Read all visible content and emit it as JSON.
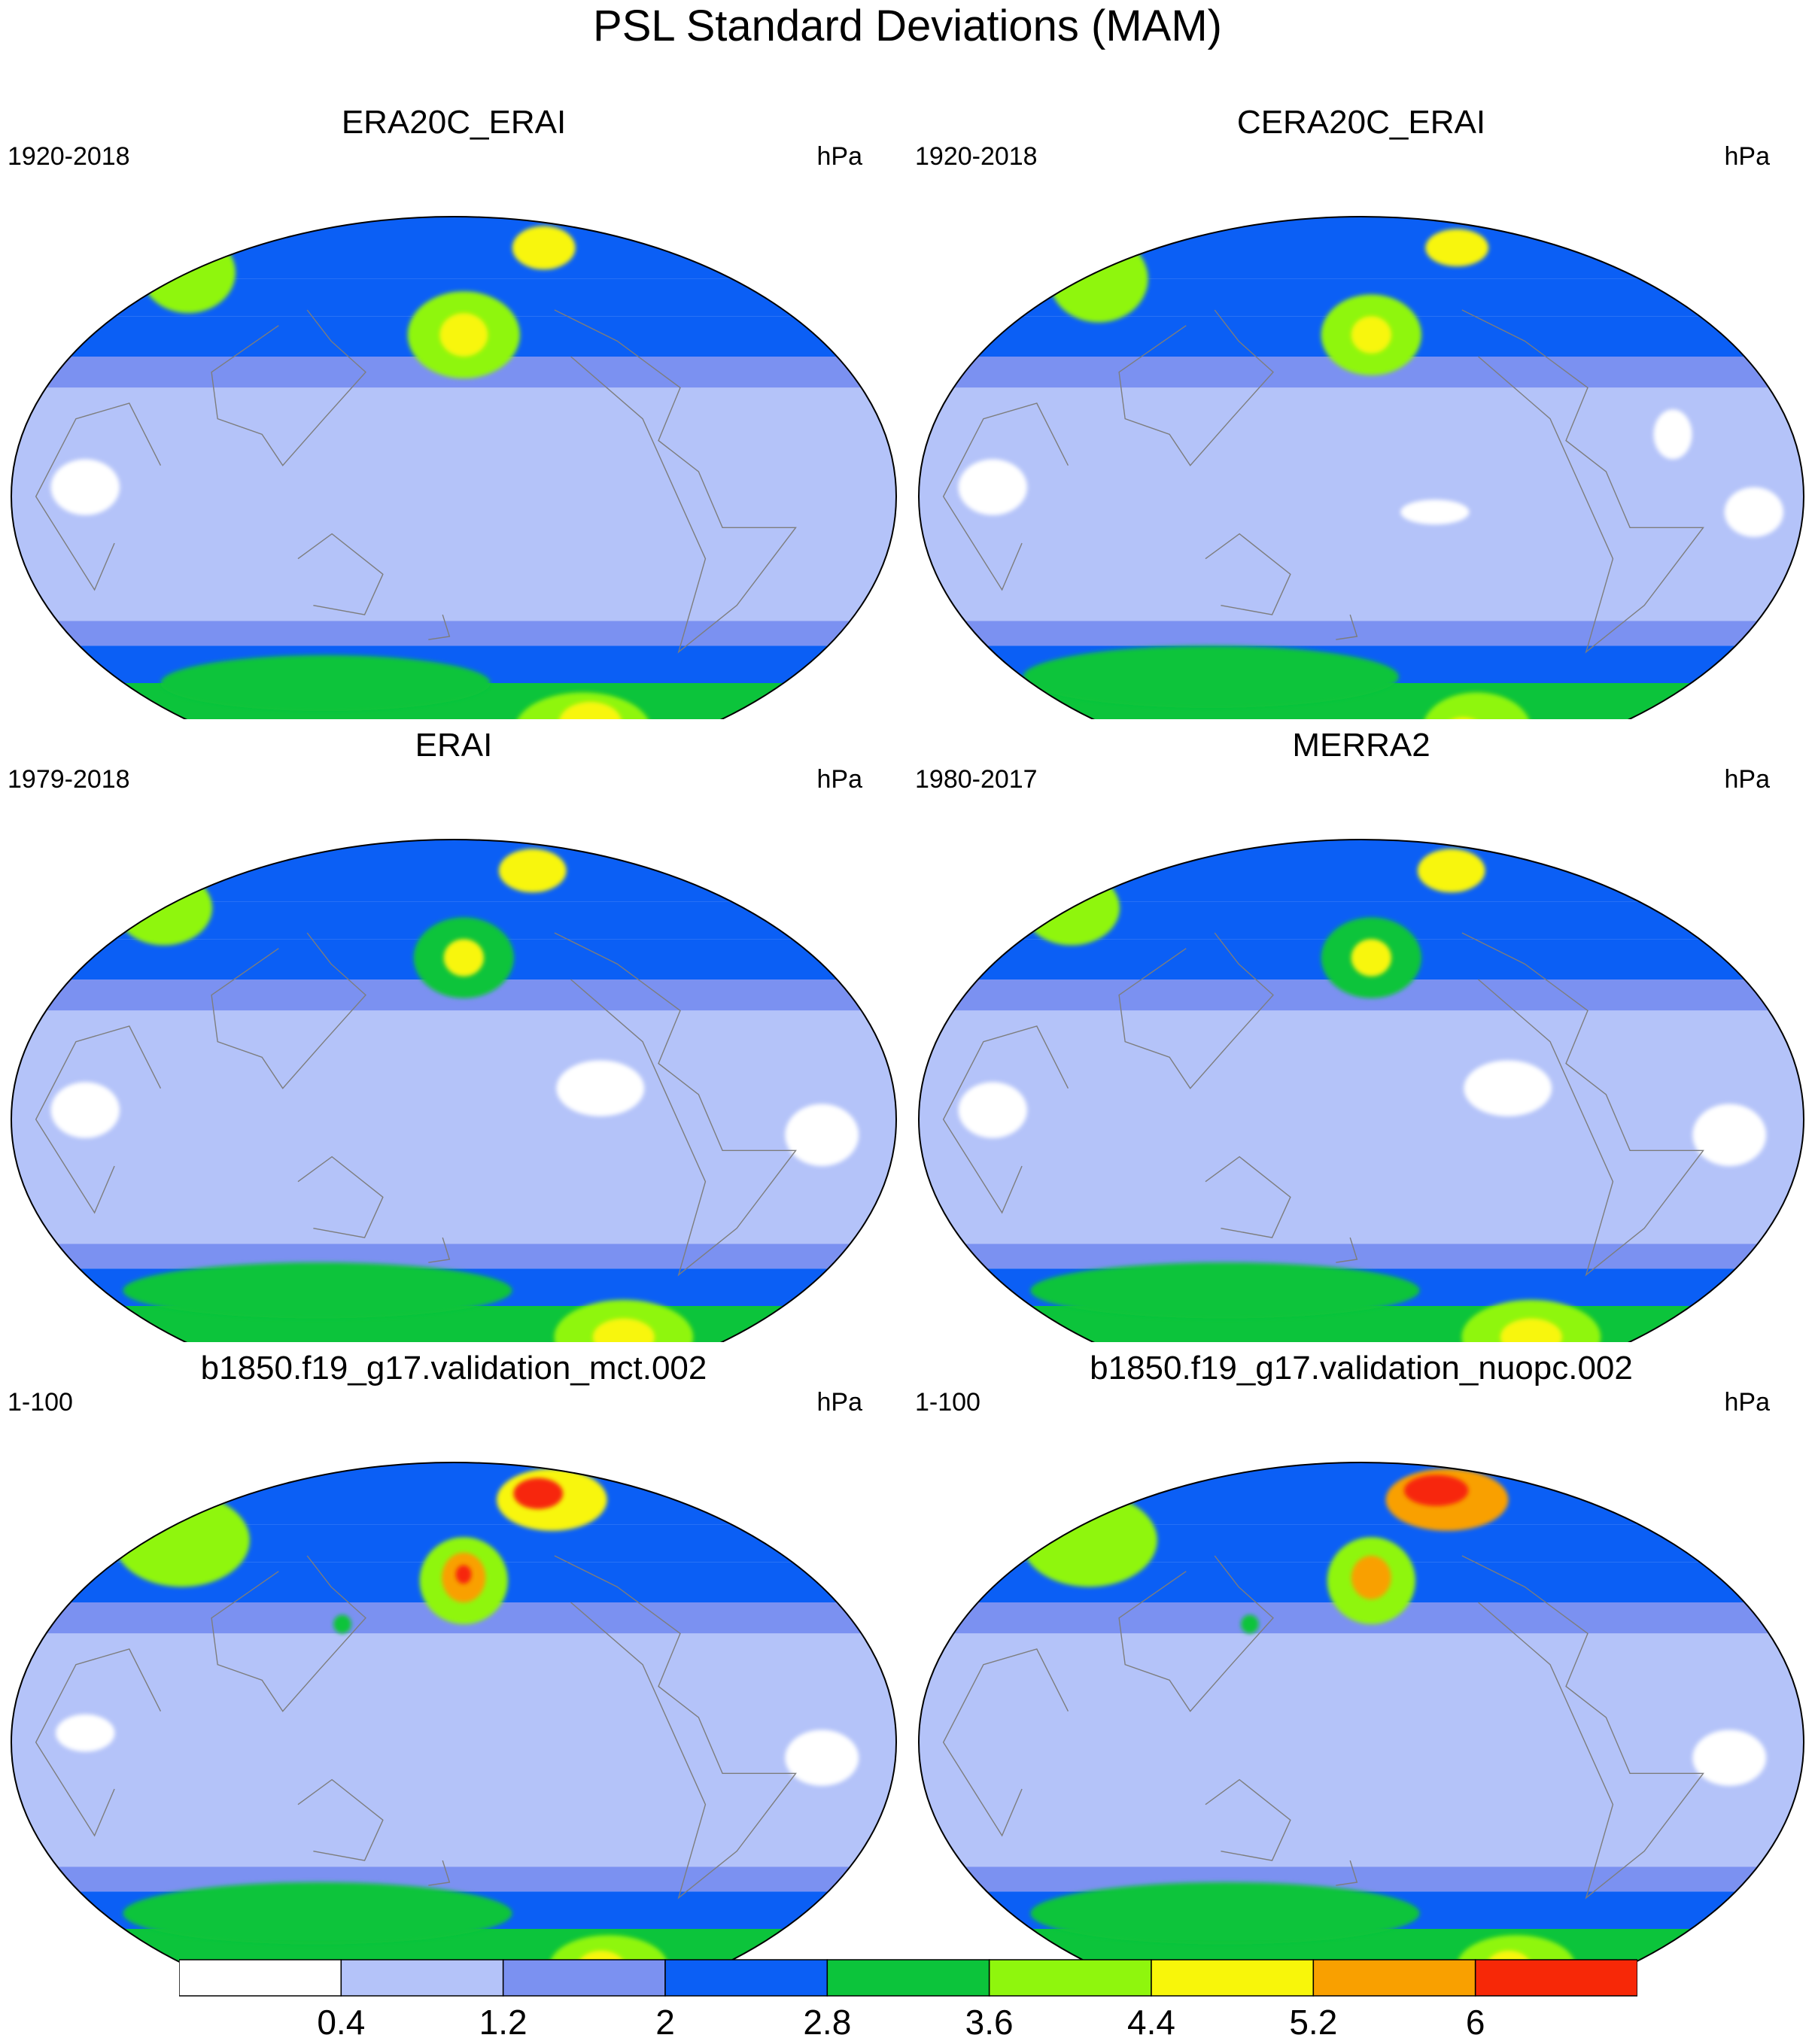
{
  "title": "PSL Standard Deviations (MAM)",
  "colors": {
    "levels": [
      "#ffffff",
      "#b4c3f9",
      "#7b91f1",
      "#0b5ff5",
      "#0cc43b",
      "#8ff60d",
      "#f8f60a",
      "#f9a000",
      "#f72807"
    ],
    "coastline": "#7d7d7d"
  },
  "colorbar": {
    "ticks": [
      "0.4",
      "1.2",
      "2",
      "2.8",
      "3.6",
      "4.4",
      "5.2",
      "6"
    ]
  },
  "chart_data": {
    "type": "heatmap",
    "projection": "Robinson-like elliptical global map, centered on the Pacific",
    "variable": "PSL standard deviation",
    "contour_levels": [
      0.4,
      1.2,
      2,
      2.8,
      3.6,
      4.4,
      5.2,
      6
    ],
    "panels": [
      {
        "title": "ERA20C_ERAI",
        "left_label": "1920-2018",
        "right_label": "hPa",
        "features": [
          {
            "lon": 0,
            "lat": 72,
            "rx": 32,
            "ry": 13,
            "value": 3.9
          },
          {
            "lon": -100,
            "lat": 80,
            "rx": 28,
            "ry": 7,
            "value": 4.9
          },
          {
            "lon": -175,
            "lat": 52,
            "rx": 28,
            "ry": 14,
            "value": 3.7
          },
          {
            "lon": -175,
            "lat": 52,
            "rx": 12,
            "ry": 7,
            "value": 4.6
          },
          {
            "lon": 110,
            "lat": -60,
            "rx": 90,
            "ry": 9,
            "value": 3.2
          },
          {
            "lon": -85,
            "lat": -75,
            "rx": 50,
            "ry": 12,
            "value": 4.2
          },
          {
            "lon": -85,
            "lat": -73,
            "rx": 22,
            "ry": 7,
            "value": 5.0
          },
          {
            "lon": 150,
            "lat": -80,
            "rx": 40,
            "ry": 6,
            "value": 4.5
          },
          {
            "lon": 30,
            "lat": 3,
            "rx": 14,
            "ry": 9,
            "value": 0.2
          }
        ]
      },
      {
        "title": "CERA20C_ERAI",
        "left_label": "1920-2018",
        "right_label": "hPa",
        "features": [
          {
            "lon": 10,
            "lat": 70,
            "rx": 32,
            "ry": 14,
            "value": 3.9
          },
          {
            "lon": -95,
            "lat": 80,
            "rx": 28,
            "ry": 6,
            "value": 5.0
          },
          {
            "lon": -175,
            "lat": 52,
            "rx": 25,
            "ry": 13,
            "value": 3.7
          },
          {
            "lon": -175,
            "lat": 52,
            "rx": 10,
            "ry": 6,
            "value": 4.6
          },
          {
            "lon": 100,
            "lat": -58,
            "rx": 100,
            "ry": 10,
            "value": 3.3
          },
          {
            "lon": -95,
            "lat": -75,
            "rx": 40,
            "ry": 12,
            "value": 4.0
          },
          {
            "lon": -100,
            "lat": -77,
            "rx": 18,
            "ry": 6,
            "value": 5.1
          },
          {
            "lon": -100,
            "lat": -80,
            "rx": 7,
            "ry": 3,
            "value": 5.6
          },
          {
            "lon": 30,
            "lat": 3,
            "rx": 14,
            "ry": 9,
            "value": 0.2
          },
          {
            "lon": -150,
            "lat": -5,
            "rx": 14,
            "ry": 4,
            "value": 0.2
          },
          {
            "lon": -20,
            "lat": -5,
            "rx": 12,
            "ry": 8,
            "value": 0.2
          },
          {
            "lon": -50,
            "lat": 20,
            "rx": 8,
            "ry": 8,
            "value": 0.2
          }
        ]
      },
      {
        "title": "ERAI",
        "left_label": "1979-2018",
        "right_label": "hPa",
        "features": [
          {
            "lon": 0,
            "lat": 68,
            "rx": 30,
            "ry": 12,
            "value": 3.7
          },
          {
            "lon": -110,
            "lat": 80,
            "rx": 30,
            "ry": 7,
            "value": 4.8
          },
          {
            "lon": -175,
            "lat": 52,
            "rx": 25,
            "ry": 13,
            "value": 3.5
          },
          {
            "lon": -175,
            "lat": 52,
            "rx": 10,
            "ry": 6,
            "value": 4.5
          },
          {
            "lon": 110,
            "lat": -55,
            "rx": 100,
            "ry": 9,
            "value": 3.0
          },
          {
            "lon": -70,
            "lat": -70,
            "rx": 45,
            "ry": 12,
            "value": 4.0
          },
          {
            "lon": -70,
            "lat": -70,
            "rx": 20,
            "ry": 6,
            "value": 4.9
          },
          {
            "lon": -120,
            "lat": 10,
            "rx": 18,
            "ry": 9,
            "value": 0.2
          },
          {
            "lon": -30,
            "lat": -5,
            "rx": 15,
            "ry": 10,
            "value": 0.2
          },
          {
            "lon": 30,
            "lat": 3,
            "rx": 14,
            "ry": 9,
            "value": 0.2
          }
        ]
      },
      {
        "title": "MERRA2",
        "left_label": "1980-2017",
        "right_label": "hPa",
        "features": [
          {
            "lon": 0,
            "lat": 68,
            "rx": 30,
            "ry": 12,
            "value": 3.7
          },
          {
            "lon": -100,
            "lat": 80,
            "rx": 30,
            "ry": 7,
            "value": 4.8
          },
          {
            "lon": -175,
            "lat": 52,
            "rx": 25,
            "ry": 13,
            "value": 3.5
          },
          {
            "lon": -175,
            "lat": 52,
            "rx": 10,
            "ry": 6,
            "value": 4.5
          },
          {
            "lon": 110,
            "lat": -55,
            "rx": 100,
            "ry": 9,
            "value": 3.0
          },
          {
            "lon": -70,
            "lat": -70,
            "rx": 45,
            "ry": 12,
            "value": 4.0
          },
          {
            "lon": -70,
            "lat": -70,
            "rx": 20,
            "ry": 6,
            "value": 4.9
          },
          {
            "lon": -120,
            "lat": 10,
            "rx": 18,
            "ry": 9,
            "value": 0.2
          },
          {
            "lon": -30,
            "lat": -5,
            "rx": 15,
            "ry": 10,
            "value": 0.2
          },
          {
            "lon": 30,
            "lat": 3,
            "rx": 14,
            "ry": 9,
            "value": 0.2
          }
        ]
      },
      {
        "title": "b1850.f19_g17.validation_mct.002",
        "left_label": "1-100",
        "right_label": "hPa",
        "features": [
          {
            "lon": 20,
            "lat": 65,
            "rx": 40,
            "ry": 15,
            "value": 4.2
          },
          {
            "lon": -100,
            "lat": 78,
            "rx": 45,
            "ry": 10,
            "value": 5.0
          },
          {
            "lon": -105,
            "lat": 80,
            "rx": 22,
            "ry": 5,
            "value": 6.3
          },
          {
            "lon": -175,
            "lat": 52,
            "rx": 22,
            "ry": 14,
            "value": 4.2
          },
          {
            "lon": -175,
            "lat": 53,
            "rx": 11,
            "ry": 8,
            "value": 5.4
          },
          {
            "lon": -175,
            "lat": 54,
            "rx": 4,
            "ry": 3,
            "value": 6.2
          },
          {
            "lon": 130,
            "lat": 38,
            "rx": 4,
            "ry": 3,
            "value": 3.2
          },
          {
            "lon": 110,
            "lat": -55,
            "rx": 100,
            "ry": 10,
            "value": 3.0
          },
          {
            "lon": -75,
            "lat": -72,
            "rx": 40,
            "ry": 10,
            "value": 4.1
          },
          {
            "lon": -80,
            "lat": -72,
            "rx": 16,
            "ry": 5,
            "value": 4.9
          },
          {
            "lon": -30,
            "lat": -5,
            "rx": 15,
            "ry": 9,
            "value": 0.2
          },
          {
            "lon": 30,
            "lat": 3,
            "rx": 12,
            "ry": 6,
            "value": 0.2
          }
        ]
      },
      {
        "title": "b1850.f19_g17.validation_nuopc.002",
        "left_label": "1-100",
        "right_label": "hPa",
        "features": [
          {
            "lon": 20,
            "lat": 65,
            "rx": 40,
            "ry": 15,
            "value": 4.2
          },
          {
            "lon": -110,
            "lat": 78,
            "rx": 50,
            "ry": 10,
            "value": 5.5
          },
          {
            "lon": -110,
            "lat": 81,
            "rx": 30,
            "ry": 5,
            "value": 6.3
          },
          {
            "lon": -175,
            "lat": 52,
            "rx": 22,
            "ry": 14,
            "value": 4.2
          },
          {
            "lon": -175,
            "lat": 53,
            "rx": 10,
            "ry": 7,
            "value": 5.4
          },
          {
            "lon": 130,
            "lat": 38,
            "rx": 4,
            "ry": 3,
            "value": 3.2
          },
          {
            "lon": 110,
            "lat": -55,
            "rx": 100,
            "ry": 10,
            "value": 3.0
          },
          {
            "lon": -75,
            "lat": -72,
            "rx": 40,
            "ry": 10,
            "value": 4.1
          },
          {
            "lon": -80,
            "lat": -72,
            "rx": 15,
            "ry": 5,
            "value": 4.8
          },
          {
            "lon": -30,
            "lat": -5,
            "rx": 15,
            "ry": 9,
            "value": 0.2
          }
        ]
      }
    ]
  }
}
